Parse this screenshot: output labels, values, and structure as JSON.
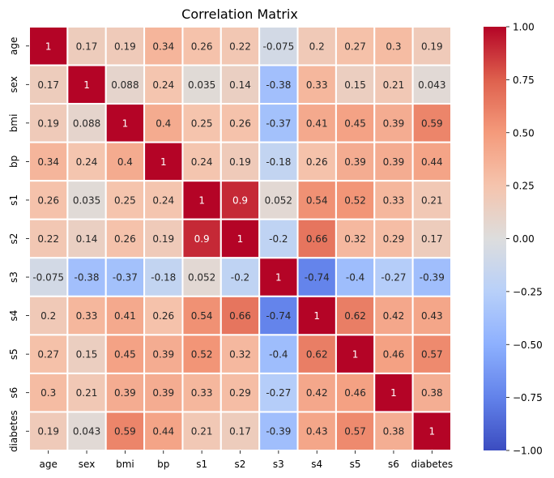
{
  "chart_data": {
    "type": "heatmap",
    "title": "Correlation Matrix",
    "xlabel": "",
    "ylabel": "",
    "colormap": "coolwarm",
    "vmin": -1.0,
    "vmax": 1.0,
    "colorbar_ticks": [
      1.0,
      0.75,
      0.5,
      0.25,
      0.0,
      -0.25,
      -0.5,
      -0.75,
      -1.0
    ],
    "colorbar_tick_labels": [
      "1.00",
      "0.75",
      "0.50",
      "0.25",
      "0.00",
      "−0.25",
      "−0.50",
      "−0.75",
      "−1.00"
    ],
    "labels": [
      "age",
      "sex",
      "bmi",
      "bp",
      "s1",
      "s2",
      "s3",
      "s4",
      "s5",
      "s6",
      "diabetes"
    ],
    "values": [
      [
        1,
        0.17,
        0.19,
        0.34,
        0.26,
        0.22,
        -0.075,
        0.2,
        0.27,
        0.3,
        0.19
      ],
      [
        0.17,
        1,
        0.088,
        0.24,
        0.035,
        0.14,
        -0.38,
        0.33,
        0.15,
        0.21,
        0.043
      ],
      [
        0.19,
        0.088,
        1,
        0.4,
        0.25,
        0.26,
        -0.37,
        0.41,
        0.45,
        0.39,
        0.59
      ],
      [
        0.34,
        0.24,
        0.4,
        1,
        0.24,
        0.19,
        -0.18,
        0.26,
        0.39,
        0.39,
        0.44
      ],
      [
        0.26,
        0.035,
        0.25,
        0.24,
        1,
        0.9,
        0.052,
        0.54,
        0.52,
        0.33,
        0.21
      ],
      [
        0.22,
        0.14,
        0.26,
        0.19,
        0.9,
        1,
        -0.2,
        0.66,
        0.32,
        0.29,
        0.17
      ],
      [
        -0.075,
        -0.38,
        -0.37,
        -0.18,
        0.052,
        -0.2,
        1,
        -0.74,
        -0.4,
        -0.27,
        -0.39
      ],
      [
        0.2,
        0.33,
        0.41,
        0.26,
        0.54,
        0.66,
        -0.74,
        1,
        0.62,
        0.42,
        0.43
      ],
      [
        0.27,
        0.15,
        0.45,
        0.39,
        0.52,
        0.32,
        -0.4,
        0.62,
        1,
        0.46,
        0.57
      ],
      [
        0.3,
        0.21,
        0.39,
        0.39,
        0.33,
        0.29,
        -0.27,
        0.42,
        0.46,
        1,
        0.38
      ],
      [
        0.19,
        0.043,
        0.59,
        0.44,
        0.21,
        0.17,
        -0.39,
        0.43,
        0.57,
        0.38,
        1
      ]
    ],
    "cell_labels": [
      [
        "1",
        "0.17",
        "0.19",
        "0.34",
        "0.26",
        "0.22",
        "-0.075",
        "0.2",
        "0.27",
        "0.3",
        "0.19"
      ],
      [
        "0.17",
        "1",
        "0.088",
        "0.24",
        "0.035",
        "0.14",
        "-0.38",
        "0.33",
        "0.15",
        "0.21",
        "0.043"
      ],
      [
        "0.19",
        "0.088",
        "1",
        "0.4",
        "0.25",
        "0.26",
        "-0.37",
        "0.41",
        "0.45",
        "0.39",
        "0.59"
      ],
      [
        "0.34",
        "0.24",
        "0.4",
        "1",
        "0.24",
        "0.19",
        "-0.18",
        "0.26",
        "0.39",
        "0.39",
        "0.44"
      ],
      [
        "0.26",
        "0.035",
        "0.25",
        "0.24",
        "1",
        "0.9",
        "0.052",
        "0.54",
        "0.52",
        "0.33",
        "0.21"
      ],
      [
        "0.22",
        "0.14",
        "0.26",
        "0.19",
        "0.9",
        "1",
        "-0.2",
        "0.66",
        "0.32",
        "0.29",
        "0.17"
      ],
      [
        "-0.075",
        "-0.38",
        "-0.37",
        "-0.18",
        "0.052",
        "-0.2",
        "1",
        "-0.74",
        "-0.4",
        "-0.27",
        "-0.39"
      ],
      [
        "0.2",
        "0.33",
        "0.41",
        "0.26",
        "0.54",
        "0.66",
        "-0.74",
        "1",
        "0.62",
        "0.42",
        "0.43"
      ],
      [
        "0.27",
        "0.15",
        "0.45",
        "0.39",
        "0.52",
        "0.32",
        "-0.4",
        "0.62",
        "1",
        "0.46",
        "0.57"
      ],
      [
        "0.3",
        "0.21",
        "0.39",
        "0.39",
        "0.33",
        "0.29",
        "-0.27",
        "0.42",
        "0.46",
        "1",
        "0.38"
      ],
      [
        "0.19",
        "0.043",
        "0.59",
        "0.44",
        "0.21",
        "0.17",
        "-0.39",
        "0.43",
        "0.57",
        "0.38",
        "1"
      ]
    ]
  }
}
